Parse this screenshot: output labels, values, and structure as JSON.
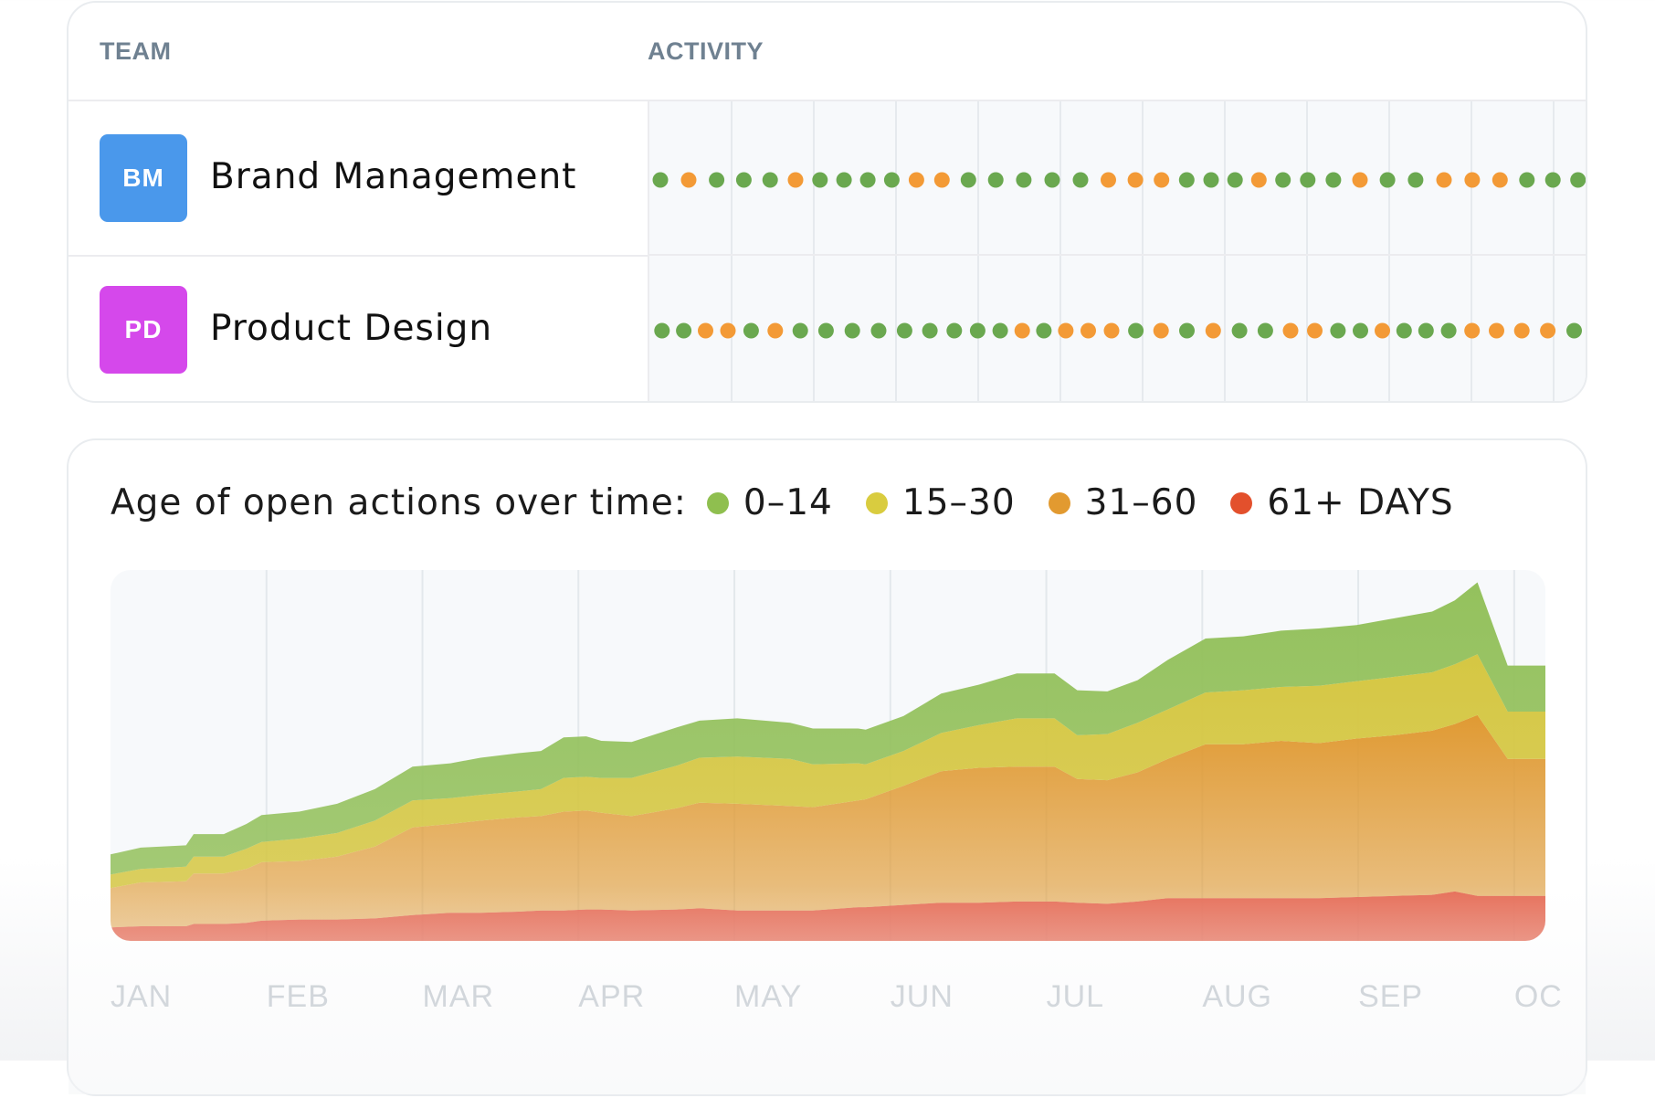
{
  "teams_table": {
    "headers": {
      "team": "TEAM",
      "activity": "ACTIVITY"
    },
    "colors": {
      "green": "#6aa84f",
      "orange": "#f39a36"
    },
    "rows": [
      {
        "initials": "BM",
        "name": "Brand Management",
        "badge_color": "#4a98eb",
        "dots": [
          "g",
          "o",
          "g",
          "g",
          "g",
          "o",
          "g",
          "g",
          "g",
          "g",
          "o",
          "o",
          "g",
          "g",
          "g",
          "g",
          "g",
          "o",
          "o",
          "o",
          "g",
          "g",
          "g",
          "o",
          "g",
          "g",
          "g",
          "o",
          "g",
          "g",
          "o",
          "o",
          "o",
          "g",
          "g",
          "g"
        ]
      },
      {
        "initials": "PD",
        "name": "Product Design",
        "badge_color": "#d548eb",
        "dots": [
          "g",
          "g",
          "o",
          "o",
          "g",
          "o",
          "g",
          "g",
          "g",
          "g",
          "g",
          "g",
          "g",
          "g",
          "g",
          "o",
          "g",
          "o",
          "o",
          "o",
          "g",
          "o",
          "g",
          "o",
          "g",
          "g",
          "o",
          "o",
          "g",
          "g",
          "o",
          "g",
          "g",
          "g",
          "o",
          "o",
          "o",
          "o",
          "g"
        ]
      }
    ]
  },
  "chart_data": {
    "type": "area",
    "title": "Age of open actions over time:",
    "stacked": true,
    "legend_position": "top",
    "x_axis_labels": [
      "JAN",
      "FEB",
      "MAR",
      "APR",
      "MAY",
      "JUN",
      "JUL",
      "AUG",
      "SEP",
      "OC"
    ],
    "ylim": [
      0,
      330
    ],
    "grid": true,
    "x": [
      0,
      0.2,
      0.5,
      0.55,
      0.75,
      0.9,
      1.0,
      1.25,
      1.5,
      1.75,
      2.0,
      2.25,
      2.45,
      2.7,
      2.85,
      3.0,
      3.15,
      3.25,
      3.45,
      3.75,
      3.9,
      4.15,
      4.5,
      4.65,
      4.95,
      5.0,
      5.25,
      5.5,
      5.75,
      6.0,
      6.25,
      6.4,
      6.6,
      6.8,
      7.0,
      7.25,
      7.5,
      7.75,
      8.0,
      8.25,
      8.5,
      8.75,
      8.9,
      9.05,
      9.25,
      9.5
    ],
    "series": [
      {
        "name": "61+ DAYS",
        "color": "#e6705a",
        "values": [
          12,
          13,
          13,
          15,
          15,
          16,
          18,
          19,
          19,
          20,
          23,
          25,
          25,
          26,
          27,
          27,
          28,
          28,
          27,
          28,
          29,
          27,
          27,
          27,
          30,
          30,
          32,
          34,
          34,
          35,
          35,
          34,
          33,
          35,
          38,
          38,
          38,
          38,
          38,
          39,
          40,
          41,
          44,
          40,
          40,
          40
        ]
      },
      {
        "name": "31–60",
        "color": "#e09a33",
        "values": [
          35,
          39,
          40,
          45,
          45,
          48,
          52,
          52,
          56,
          64,
          78,
          79,
          82,
          84,
          84,
          88,
          88,
          86,
          84,
          90,
          94,
          95,
          93,
          92,
          95,
          96,
          106,
          117,
          120,
          120,
          120,
          110,
          110,
          115,
          124,
          137,
          137,
          140,
          138,
          141,
          143,
          146,
          149,
          161,
          122,
          122
        ]
      },
      {
        "name": "15–30",
        "color": "#d5c743",
        "values": [
          12,
          12,
          13,
          15,
          15,
          18,
          18,
          20,
          21,
          23,
          24,
          23,
          23,
          23,
          24,
          30,
          30,
          31,
          34,
          38,
          40,
          42,
          42,
          38,
          33,
          31,
          31,
          34,
          38,
          43,
          43,
          39,
          41,
          44,
          44,
          46,
          48,
          48,
          51,
          51,
          52,
          52,
          53,
          54,
          42,
          42
        ]
      },
      {
        "name": "0–14",
        "color": "#94c15d",
        "values": [
          18,
          19,
          19,
          20,
          20,
          22,
          24,
          24,
          26,
          28,
          30,
          31,
          33,
          34,
          34,
          36,
          36,
          33,
          32,
          34,
          33,
          34,
          32,
          32,
          31,
          31,
          31,
          35,
          36,
          40,
          40,
          40,
          38,
          38,
          44,
          48,
          48,
          50,
          51,
          50,
          52,
          54,
          57,
          64,
          41,
          41
        ]
      }
    ]
  }
}
